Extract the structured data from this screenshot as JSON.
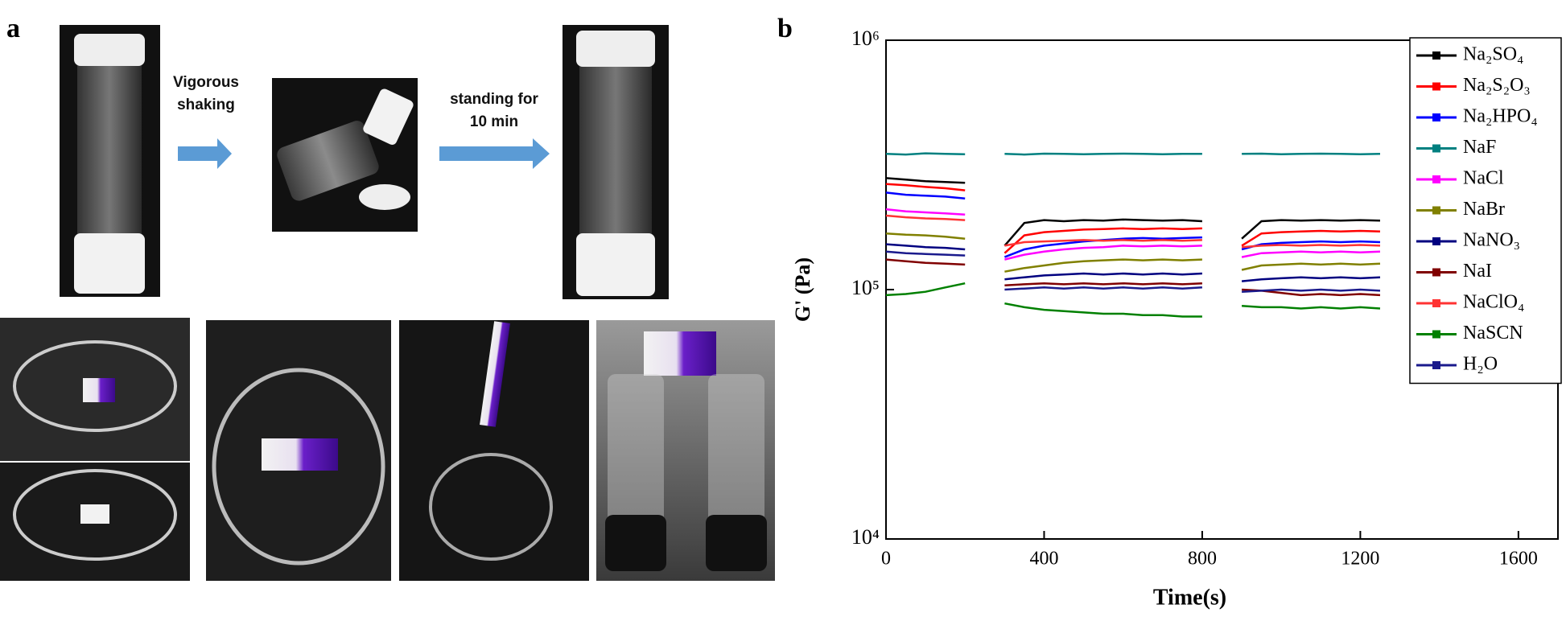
{
  "panel_labels": [
    "a",
    "b"
  ],
  "panel_a": {
    "arrow_labels": [
      [
        "Vigorous",
        "shaking"
      ],
      [
        "standing for",
        "10 min"
      ]
    ]
  },
  "chart_data": {
    "type": "line",
    "x_label": "Time(s)",
    "y_label": "G' (Pa)",
    "log_y": true,
    "xlim": [
      0,
      1700
    ],
    "xticks": [
      0,
      400,
      800,
      1200,
      1600
    ],
    "ylim": [
      10000,
      1000000
    ],
    "yticks": [
      {
        "value": 10000,
        "label": "10⁴"
      },
      {
        "value": 100000,
        "label": "10⁵"
      },
      {
        "value": 1000000,
        "label": "10⁶"
      }
    ],
    "legend": "upper right",
    "x": [
      0,
      50,
      100,
      150,
      200,
      250,
      300,
      350,
      400,
      450,
      500,
      550,
      600,
      650,
      700,
      750,
      800,
      850,
      900,
      950,
      1000,
      1050,
      1100,
      1150,
      1200,
      1250
    ],
    "series": [
      {
        "name": "Na₂SO₄",
        "color": "#000000",
        "values": [
          280000,
          276000,
          272000,
          270000,
          268000,
          null,
          150000,
          185000,
          190000,
          188000,
          190000,
          189000,
          191000,
          190000,
          189000,
          190000,
          188000,
          null,
          160000,
          188000,
          190000,
          189000,
          190000,
          189000,
          190000,
          189000
        ]
      },
      {
        "name": "Na₂S₂O₃",
        "color": "#ff0000",
        "values": [
          265000,
          262000,
          258000,
          255000,
          250000,
          null,
          140000,
          165000,
          170000,
          172000,
          174000,
          175000,
          176000,
          175000,
          176000,
          175000,
          176000,
          null,
          150000,
          168000,
          170000,
          171000,
          172000,
          171000,
          172000,
          171000
        ]
      },
      {
        "name": "Na₂HPO₄",
        "color": "#0000ff",
        "values": [
          245000,
          240000,
          238000,
          236000,
          232000,
          null,
          135000,
          145000,
          150000,
          153000,
          156000,
          158000,
          160000,
          161000,
          160000,
          161000,
          162000,
          null,
          145000,
          152000,
          154000,
          155000,
          156000,
          155000,
          156000,
          155000
        ]
      },
      {
        "name": "NaF",
        "color": "#008080",
        "values": [
          350000,
          348000,
          352000,
          350000,
          349000,
          null,
          350000,
          348000,
          351000,
          350000,
          349000,
          350000,
          351000,
          350000,
          349000,
          350000,
          350000,
          null,
          350000,
          351000,
          349000,
          350000,
          351000,
          350000,
          349000,
          350000
        ]
      },
      {
        "name": "NaCl",
        "color": "#ff00ff",
        "values": [
          210000,
          206000,
          204000,
          202000,
          200000,
          null,
          132000,
          138000,
          142000,
          145000,
          147000,
          148000,
          150000,
          149000,
          150000,
          149000,
          150000,
          null,
          135000,
          140000,
          141000,
          142000,
          141000,
          142000,
          141000,
          142000
        ]
      },
      {
        "name": "NaBr",
        "color": "#808000",
        "values": [
          168000,
          166000,
          165000,
          163000,
          160000,
          null,
          118000,
          122000,
          125000,
          128000,
          130000,
          131000,
          132000,
          131000,
          132000,
          131000,
          132000,
          null,
          120000,
          125000,
          126000,
          127000,
          126000,
          127000,
          126000,
          127000
        ]
      },
      {
        "name": "NaNO₃",
        "color": "#000080",
        "values": [
          152000,
          150000,
          148000,
          147000,
          145000,
          null,
          110000,
          112000,
          114000,
          115000,
          116000,
          115000,
          116000,
          115000,
          116000,
          115000,
          116000,
          null,
          108000,
          110000,
          111000,
          112000,
          111000,
          112000,
          111000,
          112000
        ]
      },
      {
        "name": "NaI",
        "color": "#800000",
        "values": [
          132000,
          130000,
          128000,
          127000,
          126000,
          null,
          104000,
          105000,
          106000,
          105000,
          106000,
          105000,
          106000,
          105000,
          106000,
          105000,
          106000,
          null,
          100000,
          99000,
          97000,
          95000,
          96000,
          95000,
          96000,
          95000
        ]
      },
      {
        "name": "NaClO₄",
        "color": "#ff3333",
        "values": [
          198000,
          195000,
          193000,
          192000,
          190000,
          null,
          150000,
          155000,
          156000,
          157000,
          158000,
          157000,
          158000,
          157000,
          158000,
          157000,
          158000,
          null,
          148000,
          150000,
          151000,
          150000,
          151000,
          150000,
          151000,
          150000
        ]
      },
      {
        "name": "NaSCN",
        "color": "#008000",
        "values": [
          95000,
          96000,
          98000,
          102000,
          106000,
          null,
          88000,
          85000,
          83000,
          82000,
          81000,
          80000,
          80000,
          79000,
          79000,
          78000,
          78000,
          null,
          86000,
          85000,
          85000,
          84000,
          85000,
          84000,
          85000,
          84000
        ]
      },
      {
        "name": "H₂O",
        "color": "#1a1a8c",
        "values": [
          142000,
          140000,
          139000,
          138000,
          137000,
          null,
          100000,
          101000,
          102000,
          101000,
          102000,
          101000,
          102000,
          101000,
          102000,
          101000,
          102000,
          null,
          98000,
          99000,
          100000,
          99000,
          100000,
          99000,
          100000,
          99000
        ]
      }
    ]
  }
}
